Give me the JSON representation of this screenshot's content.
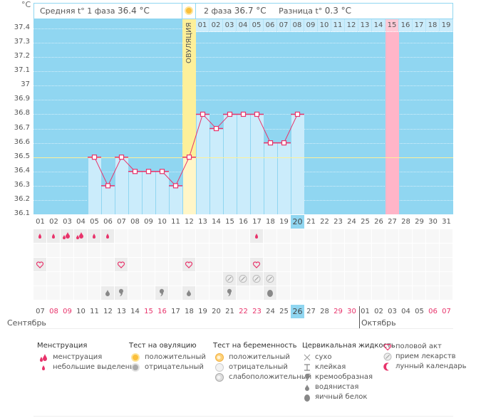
{
  "header": {
    "phase1_label": "Средняя t° 1 фаза",
    "phase1_value": "36.4 °C",
    "phase2_label": "2 фаза",
    "phase2_value": "36.7 °C",
    "diff_label": "Разница t°",
    "diff_value": "0.3 °C"
  },
  "chart_data": {
    "type": "line",
    "unit": "°C",
    "y_ticks": [
      "37.4",
      "37.3",
      "37.2",
      "37.1",
      "37",
      "36.9",
      "36.8",
      "36.7",
      "36.6",
      "36.5",
      "36.4",
      "36.3",
      "36.2",
      "36.1"
    ],
    "ylim": [
      36.1,
      37.4
    ],
    "coverline": 36.5,
    "ovulation_label": "ОВУЛЯЦИЯ",
    "ovulation_day_index": 11,
    "cycle_days": [
      "01",
      "02",
      "03",
      "04",
      "05",
      "06",
      "07",
      "08",
      "09",
      "10",
      "11",
      "12",
      "13",
      "14",
      "15",
      "16",
      "17",
      "18",
      "19",
      "20",
      "21",
      "22",
      "23",
      "24",
      "25",
      "26",
      "27",
      "28",
      "29",
      "30",
      "31"
    ],
    "luteal_days": [
      "01",
      "02",
      "03",
      "04",
      "05",
      "06",
      "07",
      "08",
      "09",
      "10",
      "11",
      "12",
      "13",
      "14",
      "15",
      "16",
      "17",
      "18",
      "19"
    ],
    "luteal_highlight": "15",
    "today_cycle_day": "20",
    "temperatures": [
      null,
      null,
      null,
      null,
      36.5,
      36.3,
      36.5,
      36.4,
      36.4,
      36.4,
      36.3,
      36.5,
      36.8,
      36.7,
      36.8,
      36.8,
      36.8,
      36.6,
      36.6,
      36.8,
      null,
      null,
      null,
      null,
      null,
      null,
      null,
      null,
      null,
      null,
      null
    ],
    "series_color": "#e8336b"
  },
  "calendar": {
    "dates": [
      "07",
      "08",
      "09",
      "10",
      "11",
      "12",
      "13",
      "14",
      "15",
      "16",
      "17",
      "18",
      "19",
      "20",
      "21",
      "22",
      "23",
      "24",
      "25",
      "26",
      "27",
      "28",
      "29",
      "30",
      "01",
      "02",
      "03",
      "04",
      "05",
      "06",
      "07"
    ],
    "weekend_indices": [
      1,
      2,
      8,
      9,
      15,
      16,
      22,
      23,
      29,
      30
    ],
    "today_index": 19,
    "month1": "Сентябрь",
    "month2": "Октябрь"
  },
  "rows": {
    "menstruation": [
      "s",
      "s",
      "m",
      "m",
      "s",
      "s",
      "",
      "",
      "",
      "",
      "",
      "",
      "",
      "",
      "",
      "",
      "s",
      "",
      "",
      "",
      "",
      "",
      "",
      "",
      "",
      "",
      "",
      "",
      "",
      "",
      ""
    ],
    "intercourse": [
      1,
      0,
      0,
      0,
      0,
      0,
      1,
      0,
      0,
      0,
      0,
      1,
      0,
      0,
      0,
      0,
      1,
      0,
      0,
      0,
      0,
      0,
      0,
      0,
      0,
      0,
      0,
      0,
      0,
      0,
      0
    ],
    "medication": [
      0,
      0,
      0,
      0,
      0,
      0,
      0,
      0,
      0,
      0,
      0,
      0,
      0,
      0,
      1,
      1,
      1,
      1,
      0,
      0,
      0,
      0,
      0,
      0,
      0,
      0,
      0,
      0,
      0,
      0,
      0
    ],
    "fluid": [
      "",
      "",
      "",
      "",
      "",
      "w",
      "c",
      "",
      "",
      "c",
      "",
      "w",
      "",
      "",
      "c",
      "",
      "",
      "e",
      "",
      "",
      "",
      "",
      "",
      "",
      "",
      "",
      "",
      "",
      "",
      "",
      ""
    ]
  },
  "legend": {
    "menstruation": {
      "title": "Менструация",
      "items": [
        "менструация",
        "небольшие выделения"
      ]
    },
    "ovulation_test": {
      "title": "Тест на овуляцию",
      "items": [
        "положительный",
        "отрицательный"
      ]
    },
    "pregnancy_test": {
      "title": "Тест на беременность",
      "items": [
        "положительный",
        "отрицательный",
        "слабоположительный"
      ]
    },
    "cervical_fluid": {
      "title": "Цервикальная жидкость",
      "items": [
        "сухо",
        "клейкая",
        "кремообразная",
        "водянистая",
        "яичный белок"
      ]
    },
    "other": {
      "items": [
        "половой акт",
        "прием лекарств",
        "лунный календарь"
      ]
    }
  },
  "colors": {
    "sky": "#90d6f1",
    "bar": "#cbecfb",
    "ovulation": "#fdf09a",
    "pink": "#ffb5c8",
    "accent": "#e8336b"
  }
}
